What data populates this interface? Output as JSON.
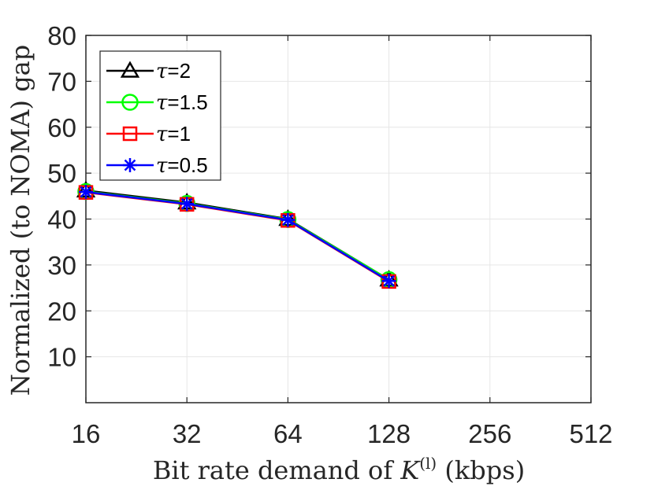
{
  "chart_data": {
    "type": "line",
    "title": "",
    "xlabel": "Bit rate demand of K(l) (kbps)",
    "xlabel_parts": {
      "prefix": "Bit rate demand of ",
      "var": "K",
      "sup": "(l)",
      "suffix": " (kbps)"
    },
    "ylabel": "Normalized (to NOMA) gap",
    "x_scale": "log2",
    "xlim": [
      16,
      512
    ],
    "x_ticks": [
      16,
      32,
      64,
      128,
      256,
      512
    ],
    "x_tick_labels": [
      "16",
      "32",
      "64",
      "128",
      "256",
      "512"
    ],
    "ylim": [
      0,
      80
    ],
    "y_ticks": [
      10,
      20,
      30,
      40,
      50,
      60,
      70,
      80
    ],
    "y_tick_labels": [
      "10",
      "20",
      "30",
      "40",
      "50",
      "60",
      "70",
      "80"
    ],
    "grid": true,
    "legend_position": "top-left",
    "x": [
      16,
      32,
      64,
      128
    ],
    "series": [
      {
        "name": "τ=2",
        "tau_symbol": "τ",
        "tau_value": "=2",
        "color": "#000000",
        "marker": "triangle",
        "values": [
          46.2,
          43.6,
          40.0,
          26.8
        ]
      },
      {
        "name": "τ=1.5",
        "tau_symbol": "τ",
        "tau_value": "=1.5",
        "color": "#00ff00",
        "marker": "circle",
        "values": [
          46.0,
          43.4,
          39.9,
          26.8
        ]
      },
      {
        "name": "τ=1",
        "tau_symbol": "τ",
        "tau_value": "=1",
        "color": "#ff0000",
        "marker": "square",
        "values": [
          45.8,
          43.2,
          39.7,
          26.4
        ]
      },
      {
        "name": "τ=0.5",
        "tau_symbol": "τ",
        "tau_value": "=0.5",
        "color": "#0000ff",
        "marker": "asterisk",
        "values": [
          45.9,
          43.3,
          39.8,
          26.5
        ]
      }
    ]
  }
}
